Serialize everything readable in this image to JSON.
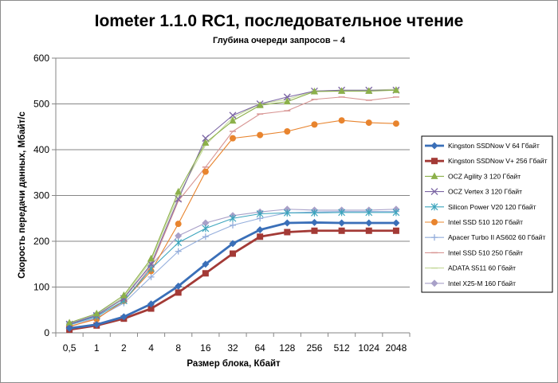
{
  "chart_data": {
    "type": "line",
    "title": "Iometer 1.1.0 RC1, последовательное чтение",
    "subtitle": "Глубина очереди запросов – 4",
    "xlabel": "Размер блока, Кбайт",
    "ylabel": "Скорость передачи данных, Мбайт/с",
    "categories": [
      "0,5",
      "1",
      "2",
      "4",
      "8",
      "16",
      "32",
      "64",
      "128",
      "256",
      "512",
      "1024",
      "2048"
    ],
    "ylim": [
      0,
      600
    ],
    "yticks": [
      0,
      100,
      200,
      300,
      400,
      500,
      600
    ],
    "grid": true,
    "legend_position": "right",
    "series": [
      {
        "name": "Kingston SSDNow V 64 Гбайт",
        "color": "#3a6fb8",
        "marker": "diamond",
        "values": [
          10,
          18,
          35,
          63,
          102,
          150,
          195,
          225,
          240,
          241,
          240,
          240,
          240
        ]
      },
      {
        "name": "Kingston SSDNow V+ 256 Гбайт",
        "color": "#a33a36",
        "marker": "square",
        "values": [
          7,
          16,
          31,
          53,
          88,
          130,
          173,
          210,
          220,
          223,
          223,
          223,
          223
        ]
      },
      {
        "name": "OCZ Agility 3 120 Гбайт",
        "color": "#8cb04a",
        "marker": "triangle",
        "values": [
          22,
          42,
          82,
          162,
          308,
          415,
          463,
          497,
          505,
          527,
          528,
          528,
          530
        ]
      },
      {
        "name": "OCZ Vertex 3 120 Гбайт",
        "color": "#7c66a4",
        "marker": "x",
        "values": [
          19,
          38,
          75,
          150,
          292,
          425,
          475,
          500,
          515,
          528,
          530,
          530,
          530
        ]
      },
      {
        "name": "Silicon Power V20 120 Гбайт",
        "color": "#3da5bd",
        "marker": "star",
        "values": [
          18,
          36,
          70,
          140,
          197,
          228,
          250,
          260,
          262,
          262,
          263,
          263,
          263
        ]
      },
      {
        "name": "Intel SSD 510 120 Гбайт",
        "color": "#e8842e",
        "marker": "circle",
        "values": [
          14,
          30,
          70,
          135,
          238,
          352,
          425,
          432,
          440,
          455,
          464,
          459,
          457
        ]
      },
      {
        "name": "Apacer Turbo II AS602 60 Гбайт",
        "color": "#94aedc",
        "marker": "plus",
        "values": [
          17,
          33,
          65,
          122,
          178,
          210,
          235,
          250,
          262,
          264,
          265,
          265,
          265
        ]
      },
      {
        "name": "Intel SSD 510 250 Гбайт",
        "color": "#d89694",
        "marker": "dash",
        "values": [
          13,
          32,
          68,
          145,
          288,
          362,
          440,
          478,
          485,
          510,
          515,
          508,
          515
        ]
      },
      {
        "name": "ADATA S511 60 Гбайт",
        "color": "#c4d89a",
        "marker": "dash",
        "values": [
          18,
          38,
          78,
          158,
          300,
          410,
          470,
          500,
          510,
          528,
          530,
          530,
          532
        ]
      },
      {
        "name": "Intel X25-M 160 Гбайт",
        "color": "#a8a0c8",
        "marker": "diamond",
        "values": [
          20,
          40,
          78,
          148,
          212,
          240,
          256,
          264,
          270,
          268,
          268,
          268,
          270
        ]
      }
    ]
  }
}
